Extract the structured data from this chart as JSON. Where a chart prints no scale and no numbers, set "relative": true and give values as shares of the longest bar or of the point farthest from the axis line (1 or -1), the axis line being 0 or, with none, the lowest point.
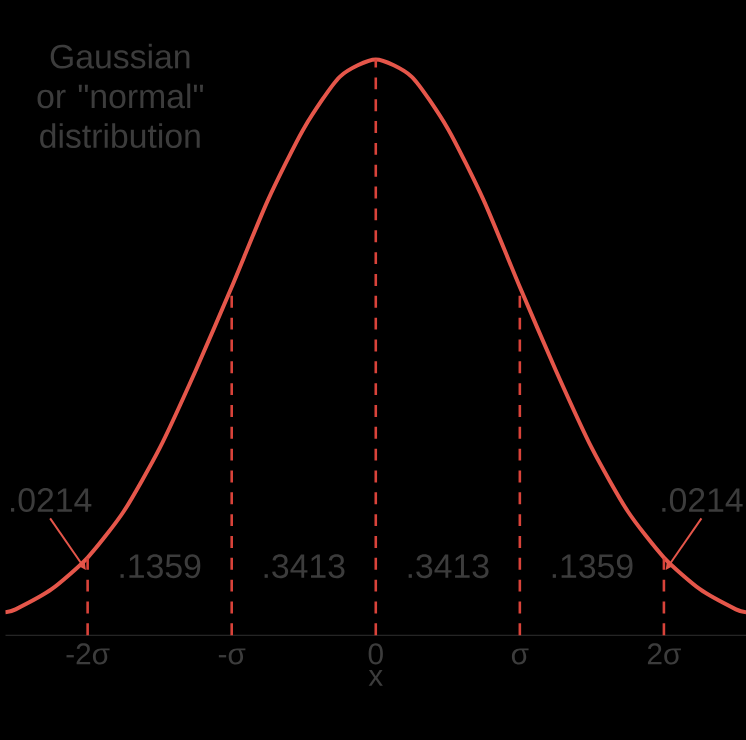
{
  "chart_data": {
    "type": "line",
    "relative": true,
    "x": [
      -2.57,
      -2.5,
      -2.25,
      -2,
      -1.75,
      -1.5,
      -1.25,
      -1,
      -0.75,
      -0.5,
      -0.25,
      0,
      0.25,
      0.5,
      0.75,
      1,
      1.25,
      1.5,
      1.75,
      2,
      2.25,
      2.5,
      2.57
    ],
    "series": [
      {
        "color": "#e5564a",
        "values": [
          0.04,
          0.045,
          0.08,
          0.135,
          0.215,
          0.325,
          0.46,
          0.605,
          0.755,
          0.88,
          0.97,
          1,
          0.97,
          0.88,
          0.755,
          0.605,
          0.46,
          0.325,
          0.215,
          0.135,
          0.08,
          0.045,
          0.04
        ]
      }
    ],
    "xlim": [
      -2.57,
      2.57
    ],
    "xticks": [
      {
        "value": -2,
        "label": "-2σ"
      },
      {
        "value": -1,
        "label": "-σ"
      },
      0,
      {
        "value": 1,
        "label": "σ"
      },
      {
        "value": 2,
        "label": "2σ"
      }
    ],
    "xlabel": "x",
    "marker": "none",
    "line_style": "solid",
    "grid": false,
    "ref_lines": [
      {
        "axis": "x",
        "value": -2,
        "color": "#d9433a",
        "line_style": "dashed"
      },
      {
        "axis": "x",
        "value": -1,
        "color": "#d9433a",
        "line_style": "dashed"
      },
      {
        "axis": "x",
        "value": 0,
        "color": "#d9433a",
        "line_style": "dashed"
      },
      {
        "axis": "x",
        "value": 1,
        "color": "#d9433a",
        "line_style": "dashed"
      },
      {
        "axis": "x",
        "value": 2,
        "color": "#d9433a",
        "line_style": "dashed"
      }
    ],
    "annotations": [
      "Gaussian or \"normal\" distribution",
      ".0214",
      ".1359",
      ".3413",
      ".3413",
      ".1359",
      ".0214"
    ]
  }
}
